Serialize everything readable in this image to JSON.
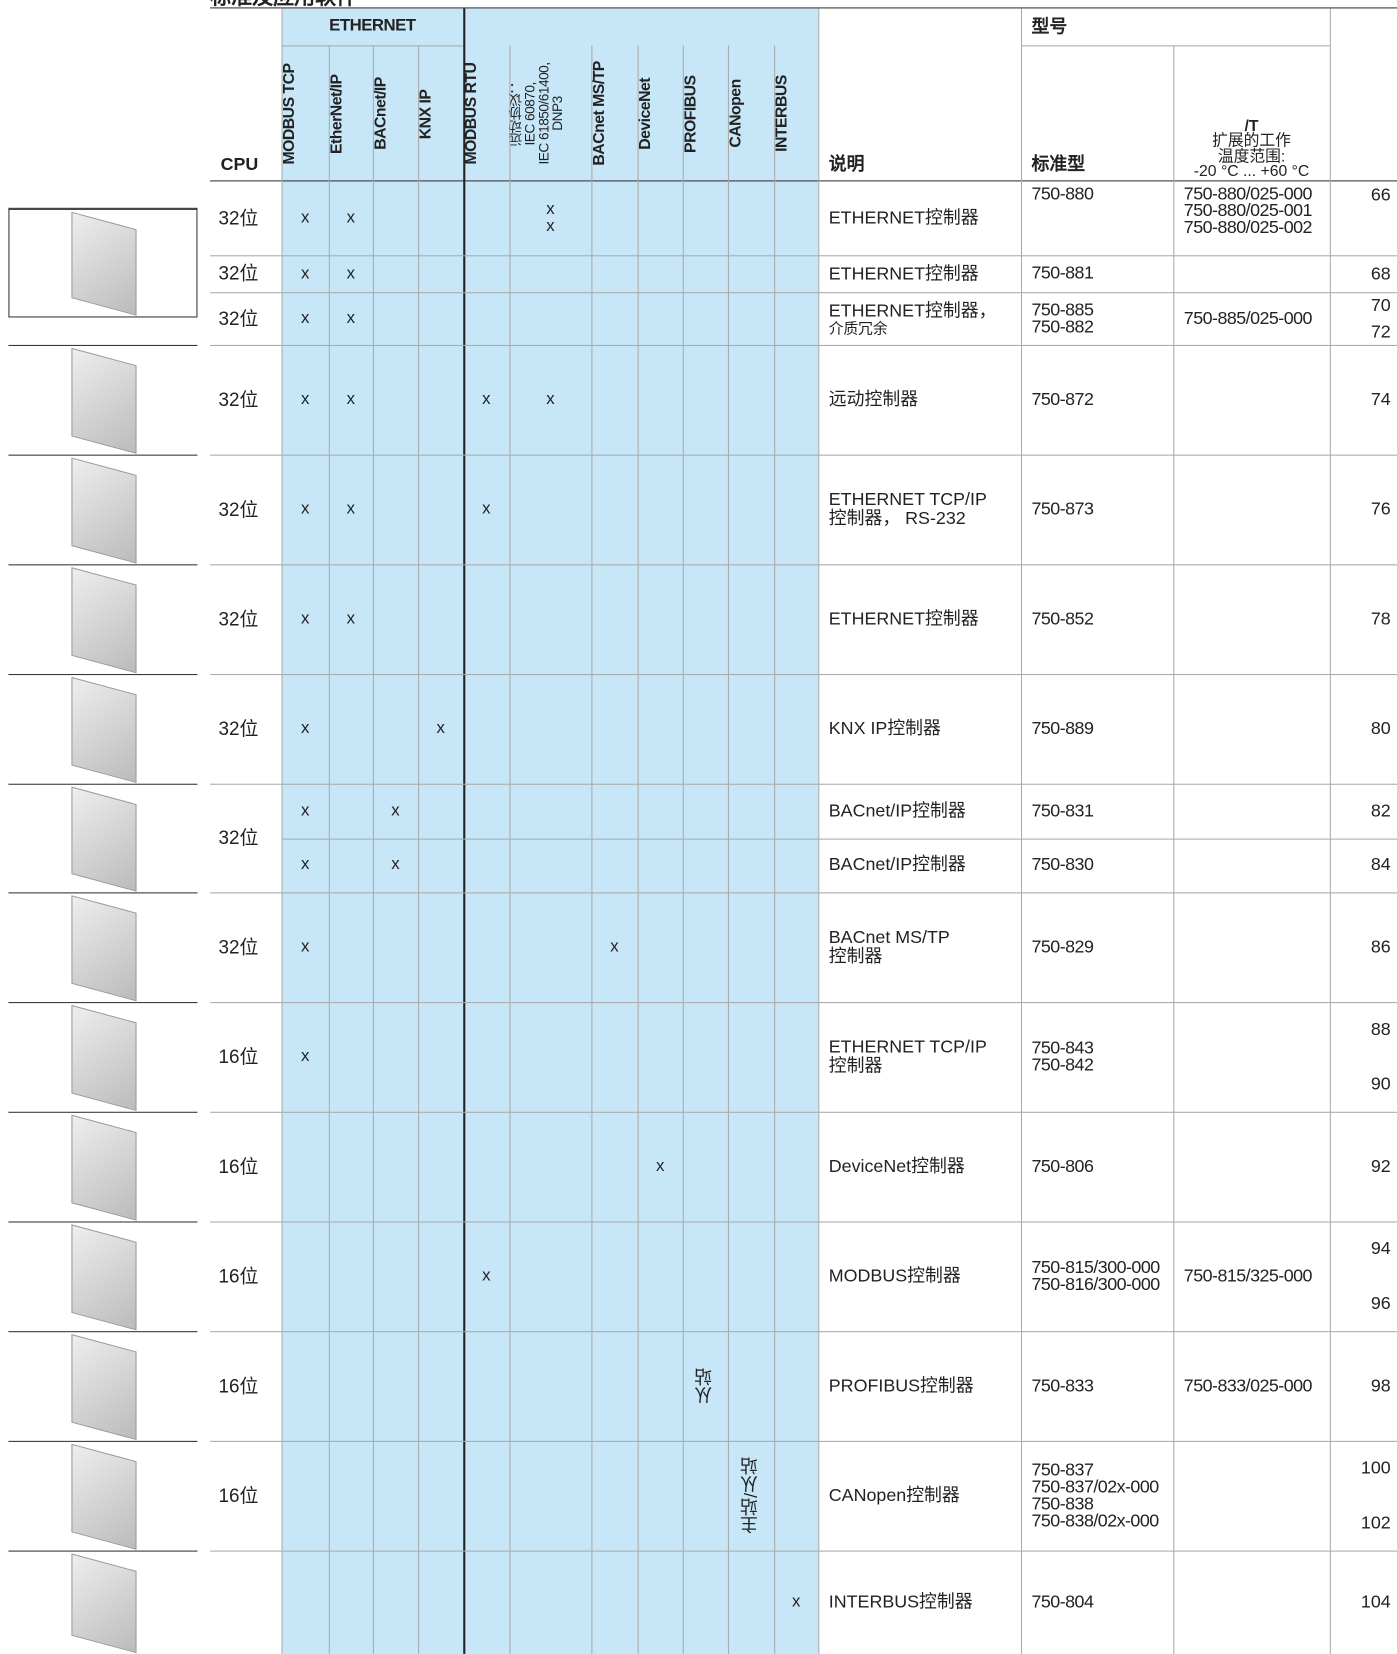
{
  "title": "标准及应用软件",
  "header": {
    "cpu": "CPU",
    "ethernet": "ETHERNET",
    "protocols": [
      "MODBUS TCP",
      "EtherNet/IP",
      "BACnet/IP",
      "KNX IP",
      "MODBUS RTU",
      [
        "远动协议：",
        "IEC 60870,",
        "IEC 61850/61400,",
        "DNP3"
      ],
      "BACnet MS/TP",
      "DeviceNet",
      "PROFIBUS",
      "CANopen",
      "INTERBUS"
    ],
    "desc": "说明",
    "model": "型号",
    "standard": "标准型",
    "ext": [
      "/T",
      "扩展的工作",
      "温度范围:",
      "-20 °C ... +60 °C"
    ]
  },
  "rows": [
    {
      "cpu": "32位",
      "entries": [
        {
          "marks": [
            "x",
            "x",
            null,
            null,
            null,
            "x\nx",
            null,
            null,
            null,
            null,
            null
          ],
          "desc": [
            "ETHERNET控制器"
          ],
          "std": [
            "750-880"
          ],
          "ext": [
            "750-880/025-000",
            "750-880/025-001",
            "750-880/025-002"
          ],
          "pages": [
            "66"
          ]
        }
      ]
    },
    {
      "cpu": "32位",
      "entries": [
        {
          "marks": [
            "x",
            "x",
            null,
            null,
            null,
            null,
            null,
            null,
            null,
            null,
            null
          ],
          "desc": [
            "ETHERNET控制器"
          ],
          "std": [
            "750-881"
          ],
          "ext": [],
          "pages": [
            "68"
          ]
        }
      ]
    },
    {
      "cpu": "32位",
      "entries": [
        {
          "marks": [
            "x",
            "x",
            null,
            null,
            null,
            null,
            null,
            null,
            null,
            null,
            null
          ],
          "desc": [
            "ETHERNET控制器，",
            "介质冗余"
          ],
          "std": [
            "750-885",
            "750-882"
          ],
          "ext": [
            "750-885/025-000"
          ],
          "pages": [
            "70",
            "72"
          ]
        }
      ]
    },
    {
      "cpu": "32位",
      "entries": [
        {
          "marks": [
            "x",
            "x",
            null,
            null,
            "x",
            "x",
            null,
            null,
            null,
            null,
            null
          ],
          "desc": [
            "远动控制器"
          ],
          "std": [
            "750-872"
          ],
          "ext": [],
          "pages": [
            "74"
          ]
        }
      ]
    },
    {
      "cpu": "32位",
      "entries": [
        {
          "marks": [
            "x",
            "x",
            null,
            null,
            "x",
            null,
            null,
            null,
            null,
            null,
            null
          ],
          "desc": [
            "ETHERNET TCP/IP",
            "控制器， RS-232"
          ],
          "std": [
            "750-873"
          ],
          "ext": [],
          "pages": [
            "76"
          ]
        }
      ]
    },
    {
      "cpu": "32位",
      "entries": [
        {
          "marks": [
            "x",
            "x",
            null,
            null,
            null,
            null,
            null,
            null,
            null,
            null,
            null
          ],
          "desc": [
            "ETHERNET控制器"
          ],
          "std": [
            "750-852"
          ],
          "ext": [],
          "pages": [
            "78"
          ]
        }
      ]
    },
    {
      "cpu": "32位",
      "entries": [
        {
          "marks": [
            "x",
            null,
            null,
            "x",
            null,
            null,
            null,
            null,
            null,
            null,
            null
          ],
          "desc": [
            "KNX IP控制器"
          ],
          "std": [
            "750-889"
          ],
          "ext": [],
          "pages": [
            "80"
          ]
        }
      ]
    },
    {
      "cpu": "32位",
      "entries": [
        {
          "marks": [
            "x",
            null,
            "x",
            null,
            null,
            null,
            null,
            null,
            null,
            null,
            null
          ],
          "desc": [
            "BACnet/IP控制器"
          ],
          "std": [
            "750-831"
          ],
          "ext": [],
          "pages": [
            "82"
          ]
        },
        {
          "marks": [
            "x",
            null,
            "x",
            null,
            null,
            null,
            null,
            null,
            null,
            null,
            null
          ],
          "desc": [
            "BACnet/IP控制器"
          ],
          "std": [
            "750-830"
          ],
          "ext": [],
          "pages": [
            "84"
          ]
        }
      ]
    },
    {
      "cpu": "32位",
      "entries": [
        {
          "marks": [
            "x",
            null,
            null,
            null,
            null,
            null,
            "x",
            null,
            null,
            null,
            null
          ],
          "desc": [
            "BACnet MS/TP",
            "控制器"
          ],
          "std": [
            "750-829"
          ],
          "ext": [],
          "pages": [
            "86"
          ]
        }
      ]
    },
    {
      "cpu": "16位",
      "entries": [
        {
          "marks": [
            "x",
            null,
            null,
            null,
            null,
            null,
            null,
            null,
            null,
            null,
            null
          ],
          "desc": [
            "ETHERNET TCP/IP",
            "控制器"
          ],
          "std": [
            "750-843",
            "750-842"
          ],
          "ext": [],
          "pages": [
            "88",
            "90"
          ]
        }
      ]
    },
    {
      "cpu": "16位",
      "entries": [
        {
          "marks": [
            null,
            null,
            null,
            null,
            null,
            null,
            null,
            "x",
            null,
            null,
            null
          ],
          "desc": [
            "DeviceNet控制器"
          ],
          "std": [
            "750-806"
          ],
          "ext": [],
          "pages": [
            "92"
          ]
        }
      ]
    },
    {
      "cpu": "16位",
      "entries": [
        {
          "marks": [
            null,
            null,
            null,
            null,
            "x",
            null,
            null,
            null,
            null,
            null,
            null
          ],
          "desc": [
            "MODBUS控制器"
          ],
          "std": [
            "750-815/300-000",
            "750-816/300-000"
          ],
          "ext": [
            "750-815/325-000"
          ],
          "pages": [
            "94",
            "96"
          ]
        }
      ]
    },
    {
      "cpu": "16位",
      "entries": [
        {
          "marks": [
            null,
            null,
            null,
            null,
            null,
            null,
            null,
            null,
            "从站",
            null,
            null
          ],
          "desc": [
            "PROFIBUS控制器"
          ],
          "std": [
            "750-833"
          ],
          "ext": [
            "750-833/025-000"
          ],
          "pages": [
            "98"
          ]
        }
      ]
    },
    {
      "cpu": "16位",
      "entries": [
        {
          "marks": [
            null,
            null,
            null,
            null,
            null,
            null,
            null,
            null,
            null,
            "主站/从站",
            null
          ],
          "desc": [
            "CANopen控制器"
          ],
          "std": [
            "750-837",
            "750-837/02x-000",
            "750-838",
            "750-838/02x-000"
          ],
          "ext": [],
          "pages": [
            "100",
            "102"
          ]
        }
      ]
    },
    {
      "cpu": null,
      "entries": [
        {
          "marks": [
            null,
            null,
            null,
            null,
            null,
            null,
            null,
            null,
            null,
            null,
            "x"
          ],
          "desc": [
            "INTERBUS控制器"
          ],
          "std": [
            "750-804"
          ],
          "ext": [],
          "pages": [
            "104"
          ]
        }
      ]
    }
  ]
}
